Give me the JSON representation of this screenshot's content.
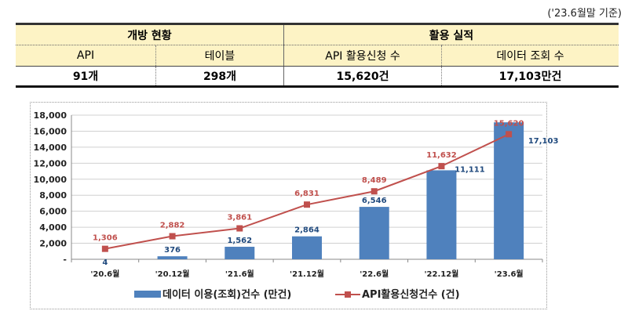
{
  "note": "('23.6월말 기준)",
  "table": {
    "groups": [
      "개방 현황",
      "활용 실적"
    ],
    "headers": [
      "API",
      "테이블",
      "API 활용신청 수",
      "데이터 조회 수"
    ],
    "values": [
      "91개",
      "298개",
      "15,620건",
      "17,103만건"
    ]
  },
  "chart_data": {
    "type": "bar+line",
    "categories": [
      "'20.6월",
      "'20.12월",
      "'21.6월",
      "'21.12월",
      "'22.6월",
      "'22.12월",
      "'23.6월"
    ],
    "series": [
      {
        "name": "데이터 이용(조회)건수 (만건)",
        "type": "bar",
        "color": "#4f81bd",
        "label_color": "#1f497d",
        "values": [
          4,
          376,
          1562,
          2864,
          6546,
          11111,
          17103
        ],
        "labels": [
          "4",
          "376",
          "1,562",
          "2,864",
          "6,546",
          "11,111",
          "17,103"
        ]
      },
      {
        "name": "API활용신청건수 (건)",
        "type": "line",
        "color": "#c0504d",
        "label_color": "#c0504d",
        "values": [
          1306,
          2882,
          3861,
          6831,
          8489,
          11632,
          15620
        ],
        "labels": [
          "1,306",
          "2,882",
          "3,861",
          "6,831",
          "8,489",
          "11,632",
          "15,620"
        ]
      }
    ],
    "ylim": [
      0,
      18000
    ],
    "yticks": [
      0,
      2000,
      4000,
      6000,
      8000,
      10000,
      12000,
      14000,
      16000,
      18000
    ],
    "ytick_labels": [
      "-",
      "2,000",
      "4,000",
      "6,000",
      "8,000",
      "10,000",
      "12,000",
      "14,000",
      "16,000",
      "18,000"
    ],
    "grid": true,
    "legend": "bottom"
  }
}
